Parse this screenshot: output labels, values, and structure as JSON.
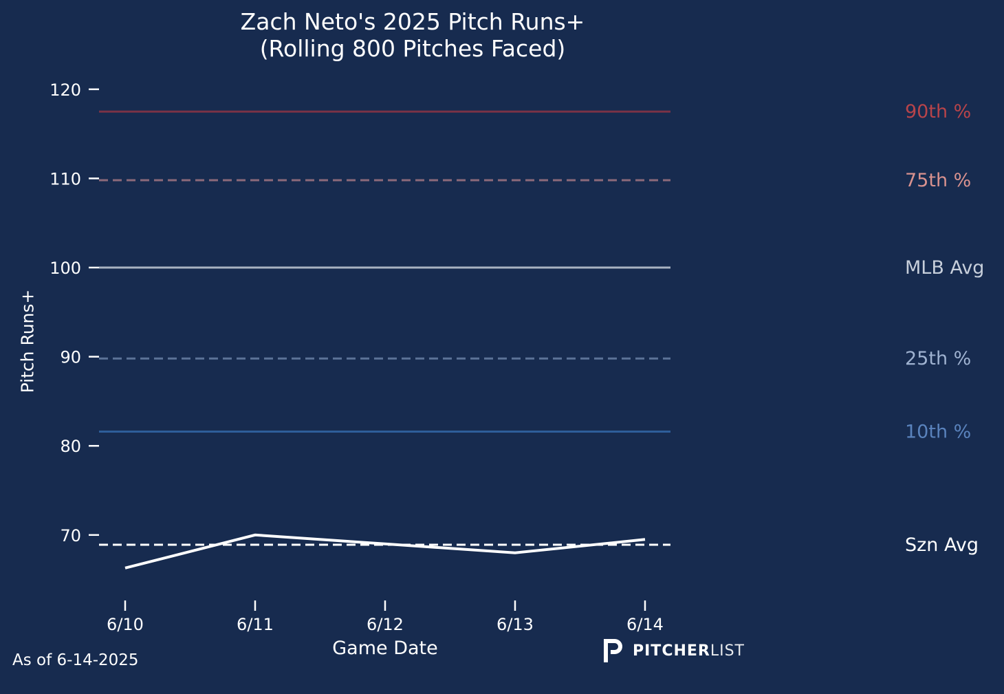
{
  "chart_data": {
    "type": "line",
    "title": "Zach Neto's 2025 Pitch Runs+",
    "subtitle": "(Rolling 800 Pitches Faced)",
    "xlabel": "Game Date",
    "ylabel": "Pitch Runs+",
    "x": [
      "6/10",
      "6/11",
      "6/12",
      "6/13",
      "6/14"
    ],
    "series": [
      {
        "name": "Pitch Runs+ (Rolling 800)",
        "values": [
          66.3,
          70.0,
          69.0,
          68.0,
          69.5
        ],
        "color": "#ffffff"
      }
    ],
    "reference_lines": [
      {
        "label": "90th %",
        "value": 117.5,
        "color": "#7a3346",
        "label_color": "#b8444a",
        "style": "solid"
      },
      {
        "label": "75th %",
        "value": 109.8,
        "color": "#8c6a7a",
        "label_color": "#d9928f",
        "style": "dashed"
      },
      {
        "label": "MLB Avg",
        "value": 100,
        "color": "#a9b3c2",
        "label_color": "#c7cfdb",
        "style": "solid"
      },
      {
        "label": "25th %",
        "value": 89.8,
        "color": "#5c7397",
        "label_color": "#9fb2d0",
        "style": "dashed"
      },
      {
        "label": "10th %",
        "value": 81.6,
        "color": "#2e5e9a",
        "label_color": "#5a83bd",
        "style": "solid"
      },
      {
        "label": "Szn Avg",
        "value": 68.9,
        "color": "#ffffff",
        "label_color": "#ffffff",
        "style": "dashed"
      }
    ],
    "yticks": [
      70,
      80,
      90,
      100,
      110,
      120
    ],
    "ylim": [
      63.5,
      121
    ],
    "grid": false,
    "background": "#172b4f"
  },
  "footer": {
    "as_of": "As of 6-14-2025",
    "brand_bold": "PITCHER",
    "brand_light": "LIST"
  }
}
